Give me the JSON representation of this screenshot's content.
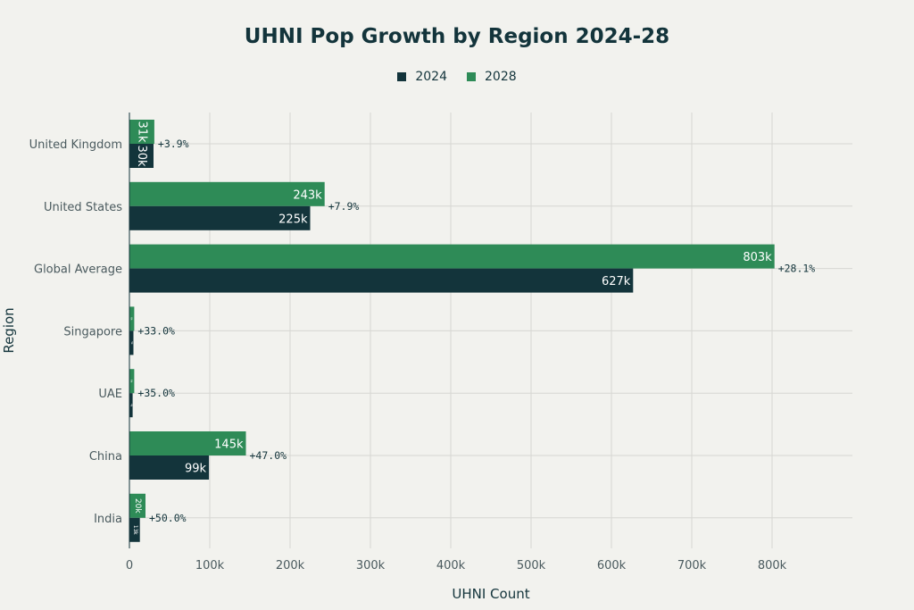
{
  "chart_data": {
    "type": "bar",
    "orientation": "horizontal",
    "title": "UHNI Pop Growth by Region 2024-28",
    "xlabel": "UHNI Count",
    "ylabel": "Region",
    "categories": [
      "United Kingdom",
      "United States",
      "Global Average",
      "Singapore",
      "UAE",
      "China",
      "India"
    ],
    "series": [
      {
        "name": "2024",
        "color": "#13343b",
        "values": [
          30,
          225,
          627,
          5,
          4,
          99,
          13
        ],
        "labels": [
          "30k",
          "225k",
          "627k",
          "5k",
          "4k",
          "99k",
          "13k"
        ]
      },
      {
        "name": "2028",
        "color": "#2e8b57",
        "values": [
          31,
          243,
          803,
          6,
          6,
          145,
          20
        ],
        "labels": [
          "31k",
          "243k",
          "803k",
          "6k",
          "6k",
          "145k",
          "20k"
        ]
      }
    ],
    "growth_labels": [
      "+3.9%",
      "+7.9%",
      "+28.1%",
      "+33.0%",
      "+35.0%",
      "+47.0%",
      "+50.0%"
    ],
    "xlim": [
      0,
      900
    ],
    "xticks": [
      0,
      100,
      200,
      300,
      400,
      500,
      600,
      700,
      800
    ],
    "xtick_labels": [
      "0",
      "100k",
      "200k",
      "300k",
      "400k",
      "500k",
      "600k",
      "700k",
      "800k"
    ],
    "grid": true,
    "legend_position": "top-center"
  }
}
